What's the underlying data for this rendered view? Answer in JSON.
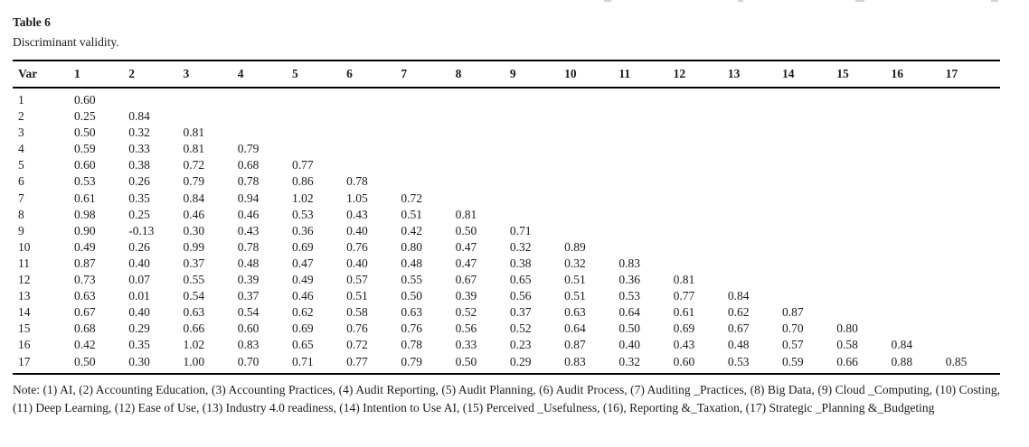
{
  "title": "Table 6",
  "caption": "Discriminant validity.",
  "table": {
    "var_header": "Var",
    "columns": [
      "1",
      "2",
      "3",
      "4",
      "5",
      "6",
      "7",
      "8",
      "9",
      "10",
      "11",
      "12",
      "13",
      "14",
      "15",
      "16",
      "17"
    ],
    "rows": [
      {
        "var": "1",
        "values": [
          "0.60"
        ]
      },
      {
        "var": "2",
        "values": [
          "0.25",
          "0.84"
        ]
      },
      {
        "var": "3",
        "values": [
          "0.50",
          "0.32",
          "0.81"
        ]
      },
      {
        "var": "4",
        "values": [
          "0.59",
          "0.33",
          "0.81",
          "0.79"
        ]
      },
      {
        "var": "5",
        "values": [
          "0.60",
          "0.38",
          "0.72",
          "0.68",
          "0.77"
        ]
      },
      {
        "var": "6",
        "values": [
          "0.53",
          "0.26",
          "0.79",
          "0.78",
          "0.86",
          "0.78"
        ]
      },
      {
        "var": "7",
        "values": [
          "0.61",
          "0.35",
          "0.84",
          "0.94",
          "1.02",
          "1.05",
          "0.72"
        ]
      },
      {
        "var": "8",
        "values": [
          "0.98",
          "0.25",
          "0.46",
          "0.46",
          "0.53",
          "0.43",
          "0.51",
          "0.81"
        ]
      },
      {
        "var": "9",
        "values": [
          "0.90",
          "-0.13",
          "0.30",
          "0.43",
          "0.36",
          "0.40",
          "0.42",
          "0.50",
          "0.71"
        ]
      },
      {
        "var": "10",
        "values": [
          "0.49",
          "0.26",
          "0.99",
          "0.78",
          "0.69",
          "0.76",
          "0.80",
          "0.47",
          "0.32",
          "0.89"
        ]
      },
      {
        "var": "11",
        "values": [
          "0.87",
          "0.40",
          "0.37",
          "0.48",
          "0.47",
          "0.40",
          "0.48",
          "0.47",
          "0.38",
          "0.32",
          "0.83"
        ]
      },
      {
        "var": "12",
        "values": [
          "0.73",
          "0.07",
          "0.55",
          "0.39",
          "0.49",
          "0.57",
          "0.55",
          "0.67",
          "0.65",
          "0.51",
          "0.36",
          "0.81"
        ]
      },
      {
        "var": "13",
        "values": [
          "0.63",
          "0.01",
          "0.54",
          "0.37",
          "0.46",
          "0.51",
          "0.50",
          "0.39",
          "0.56",
          "0.51",
          "0.53",
          "0.77",
          "0.84"
        ]
      },
      {
        "var": "14",
        "values": [
          "0.67",
          "0.40",
          "0.63",
          "0.54",
          "0.62",
          "0.58",
          "0.63",
          "0.52",
          "0.37",
          "0.63",
          "0.64",
          "0.61",
          "0.62",
          "0.87"
        ]
      },
      {
        "var": "15",
        "values": [
          "0.68",
          "0.29",
          "0.66",
          "0.60",
          "0.69",
          "0.76",
          "0.76",
          "0.56",
          "0.52",
          "0.64",
          "0.50",
          "0.69",
          "0.67",
          "0.70",
          "0.80"
        ]
      },
      {
        "var": "16",
        "values": [
          "0.42",
          "0.35",
          "1.02",
          "0.83",
          "0.65",
          "0.72",
          "0.78",
          "0.33",
          "0.23",
          "0.87",
          "0.40",
          "0.43",
          "0.48",
          "0.57",
          "0.58",
          "0.84"
        ]
      },
      {
        "var": "17",
        "values": [
          "0.50",
          "0.30",
          "1.00",
          "0.70",
          "0.71",
          "0.77",
          "0.79",
          "0.50",
          "0.29",
          "0.83",
          "0.32",
          "0.60",
          "0.53",
          "0.59",
          "0.66",
          "0.88",
          "0.85"
        ]
      }
    ]
  },
  "note": {
    "text": "Note: (1) AI, (2) Accounting Education, (3) Accounting Practices, (4) Audit Reporting, (5) Audit Planning, (6) Audit Process, (7) Auditing _Practices, (8) Big Data, (9) Cloud _Computing, (10) Costing, (11) Deep Learning, (12) Ease of Use, (13) Industry 4.0 readiness, (14) Intention to Use AI, (15) Perceived _Usefulness, (16), Reporting &_Taxation, (17) Strategic _Planning &_Budgeting"
  },
  "colors": {
    "text": "#1b1b1b",
    "rule": "#000000",
    "background": "#ffffff"
  }
}
